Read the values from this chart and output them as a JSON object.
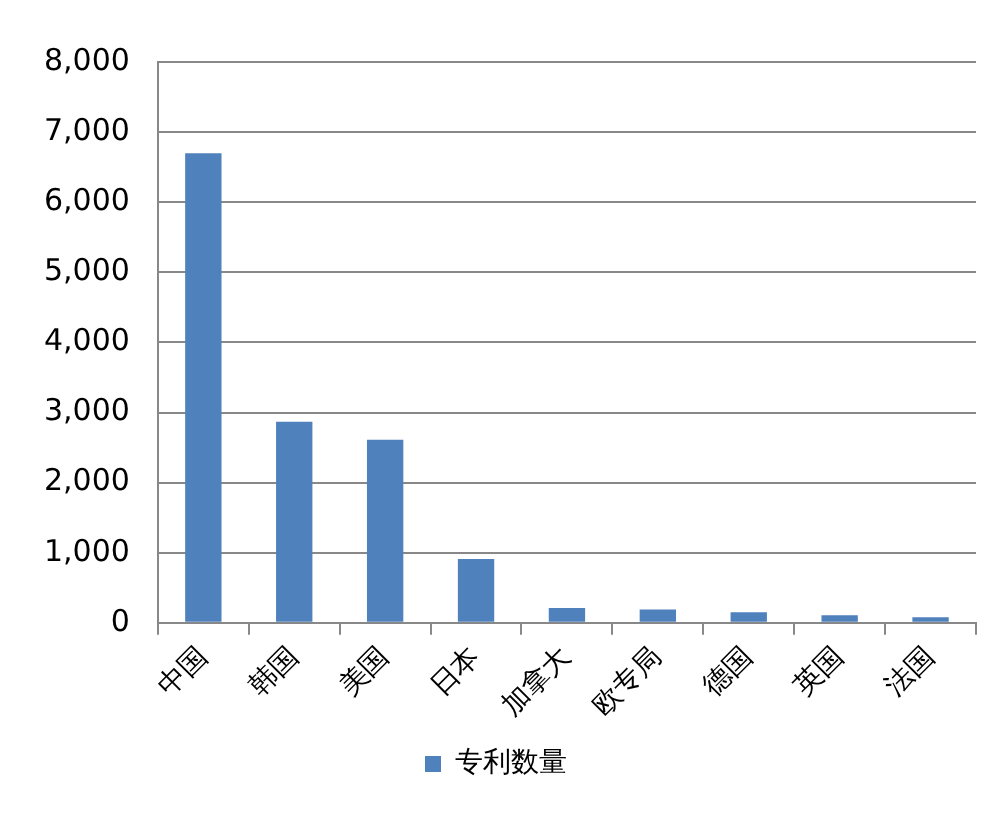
{
  "chart_data": {
    "type": "bar",
    "categories": [
      "中国",
      "韩国",
      "美国",
      "日本",
      "加拿大",
      "欧专局",
      "德国",
      "英国",
      "法国"
    ],
    "series": [
      {
        "name": "专利数量",
        "color": "#4f81bd",
        "values": [
          6700,
          2870,
          2610,
          910,
          210,
          190,
          150,
          110,
          80
        ]
      }
    ],
    "ylim": [
      0,
      8000
    ],
    "yticks": [
      {
        "value": 0,
        "label": "0"
      },
      {
        "value": 1000,
        "label": "1,000"
      },
      {
        "value": 2000,
        "label": "2,000"
      },
      {
        "value": 3000,
        "label": "3,000"
      },
      {
        "value": 4000,
        "label": "4,000"
      },
      {
        "value": 5000,
        "label": "5,000"
      },
      {
        "value": 6000,
        "label": "6,000"
      },
      {
        "value": 7000,
        "label": "7,000"
      },
      {
        "value": 8000,
        "label": "8,000"
      }
    ],
    "grid": "y",
    "legend": "bottom"
  }
}
